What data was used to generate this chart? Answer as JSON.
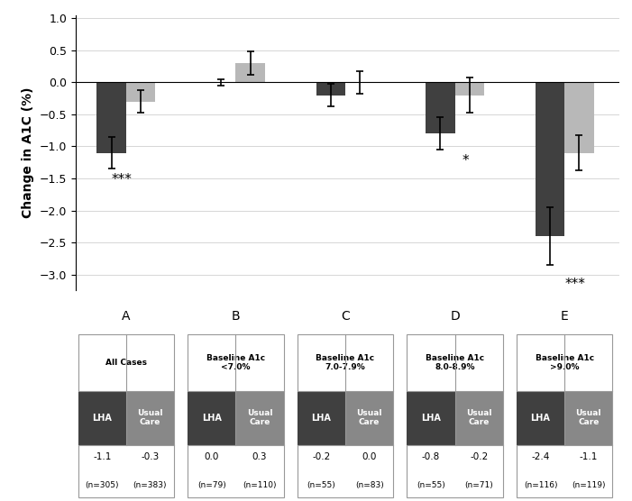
{
  "groups": [
    "A",
    "B",
    "C",
    "D",
    "E"
  ],
  "lha_values": [
    -1.1,
    0.0,
    -0.2,
    -0.8,
    -2.4
  ],
  "uc_values": [
    -0.3,
    0.3,
    0.0,
    -0.2,
    -1.1
  ],
  "lha_errors": [
    0.25,
    0.05,
    0.18,
    0.25,
    0.45
  ],
  "uc_errors": [
    0.18,
    0.18,
    0.18,
    0.28,
    0.28
  ],
  "significance": [
    "***",
    null,
    null,
    "*",
    "***"
  ],
  "sig_x_offset": [
    -0.05,
    null,
    null,
    0.12,
    0.12
  ],
  "sig_y": [
    -1.42,
    null,
    null,
    -1.12,
    -3.05
  ],
  "lha_color": "#404040",
  "uc_color": "#b8b8b8",
  "ylabel": "Change in A1C (%)",
  "ylim": [
    -3.25,
    1.05
  ],
  "yticks": [
    1.0,
    0.5,
    0.0,
    -0.5,
    -1.0,
    -1.5,
    -2.0,
    -2.5,
    -3.0
  ],
  "table_headers": [
    "All Cases",
    "Baseline A1c\n<7.0%",
    "Baseline A1c\n7.0-7.9%",
    "Baseline A1c\n8.0-8.9%",
    "Baseline A1c\n>9.0%"
  ],
  "lha_ns": [
    "n=305",
    "n=79",
    "n=55",
    "n=55",
    "n=116"
  ],
  "uc_ns": [
    "n=383",
    "n=110",
    "n=83",
    "n=71",
    "n=119"
  ],
  "lha_vals_str": [
    "-1.1",
    "0.0",
    "-0.2",
    "-0.8",
    "-2.4"
  ],
  "uc_vals_str": [
    "-0.3",
    "0.3",
    "0.0",
    "-0.2",
    "-1.1"
  ],
  "bar_width": 0.32,
  "group_positions": [
    1.0,
    2.2,
    3.4,
    4.6,
    5.8
  ],
  "xlim": [
    0.45,
    6.4
  ],
  "background_color": "#ffffff",
  "grid_color": "#d0d0d0",
  "fig_width": 7.01,
  "fig_height": 5.56
}
